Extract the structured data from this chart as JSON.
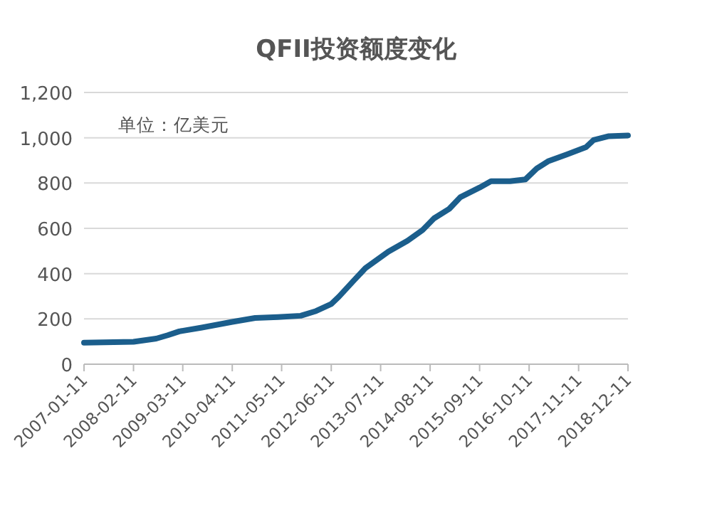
{
  "chart_data": {
    "type": "line",
    "title": "QFII投资额度变化",
    "annotations": [
      "单位：亿美元"
    ],
    "x": [
      "2007-01-11",
      "2008-02-11",
      "2008-08-11",
      "2008-11-11",
      "2009-02-11",
      "2009-08-11",
      "2010-04-11",
      "2010-10-11",
      "2011-04-11",
      "2011-10-11",
      "2012-02-11",
      "2012-06-11",
      "2012-08-11",
      "2012-12-11",
      "2013-03-11",
      "2013-09-11",
      "2014-02-11",
      "2014-06-11",
      "2014-09-11",
      "2015-01-11",
      "2015-04-11",
      "2015-09-11",
      "2015-12-11",
      "2016-05-11",
      "2016-09-11",
      "2016-12-11",
      "2017-03-11",
      "2017-08-11",
      "2018-01-11",
      "2018-03-11",
      "2018-07-11",
      "2018-12-11"
    ],
    "series": [
      {
        "color": "#1b5e8c",
        "values": [
          95,
          99,
          113,
          128,
          145,
          162,
          187,
          204,
          208,
          214,
          235,
          266,
          298,
          371,
          424,
          497,
          545,
          592,
          644,
          686,
          738,
          780,
          808,
          808,
          816,
          864,
          896,
          927,
          959,
          990,
          1007,
          1010
        ]
      }
    ],
    "xlim": [
      "2007-01-11",
      "2018-12-11"
    ],
    "xticks": [
      "2007-01-11",
      "2008-02-11",
      "2009-03-11",
      "2010-04-11",
      "2011-05-11",
      "2012-06-11",
      "2013-07-11",
      "2014-08-11",
      "2015-09-11",
      "2016-10-11",
      "2017-11-11",
      "2018-12-11"
    ],
    "ylim": [
      0,
      1200
    ],
    "yticks": [
      0,
      200,
      400,
      600,
      800,
      {
        "value": 1000,
        "label": "1,000"
      },
      {
        "value": 1200,
        "label": "1,200"
      }
    ],
    "grid": "y"
  }
}
